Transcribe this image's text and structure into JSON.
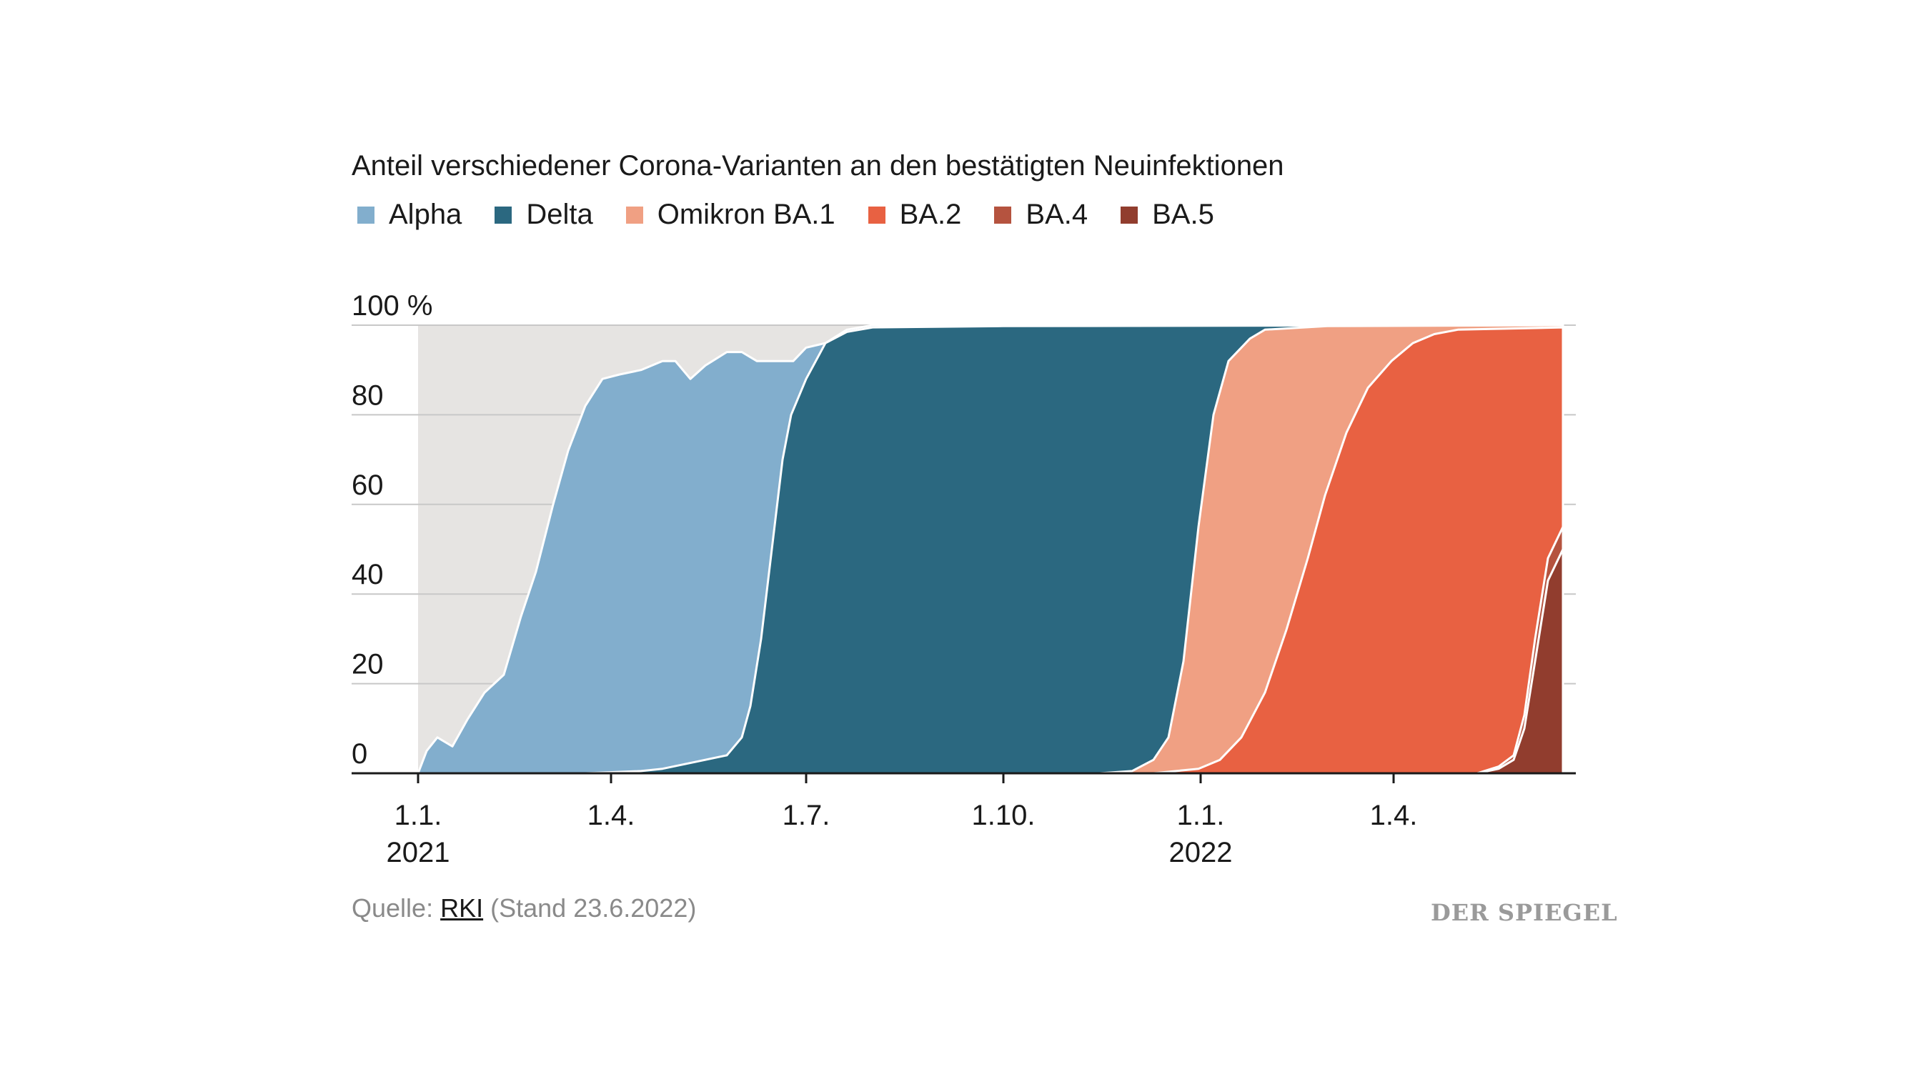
{
  "chart_data": {
    "type": "area",
    "stacked": true,
    "title": "Anteil verschiedener Corona-Varianten an den bestätigten Neuinfektionen",
    "legend": [
      {
        "name": "Alpha",
        "color": "#82aecd"
      },
      {
        "name": "Delta",
        "color": "#2b6880"
      },
      {
        "name": "Omikron BA.1",
        "color": "#f0a083"
      },
      {
        "name": "BA.2",
        "color": "#e86142"
      },
      {
        "name": "BA.4",
        "color": "#b5533f"
      },
      {
        "name": "BA.5",
        "color": "#913d2e"
      }
    ],
    "y_unit": "%",
    "ylim": [
      0,
      100
    ],
    "y_ticks": [
      "0",
      "20",
      "40",
      "60",
      "80",
      "100 %"
    ],
    "x_ticks": [
      {
        "date": "2021-01-01",
        "label": "1.1.",
        "year": "2021"
      },
      {
        "date": "2021-04-01",
        "label": "1.4.",
        "year": ""
      },
      {
        "date": "2021-07-01",
        "label": "1.7.",
        "year": ""
      },
      {
        "date": "2021-10-01",
        "label": "1.10.",
        "year": ""
      },
      {
        "date": "2022-01-01",
        "label": "1.1.",
        "year": "2022"
      },
      {
        "date": "2022-04-01",
        "label": "1.4.",
        "year": ""
      }
    ],
    "x_range": [
      "2020-12-01",
      "2022-06-25"
    ],
    "series_cumulative": [
      {
        "name": "BA.5",
        "color": "#913d2e",
        "points": [
          [
            "2022-05-10",
            0
          ],
          [
            "2022-05-20",
            1
          ],
          [
            "2022-05-27",
            3
          ],
          [
            "2022-06-01",
            10
          ],
          [
            "2022-06-06",
            25
          ],
          [
            "2022-06-12",
            43
          ],
          [
            "2022-06-19",
            50
          ]
        ]
      },
      {
        "name": "BA.4",
        "color": "#b5533f",
        "points": [
          [
            "2022-05-10",
            0
          ],
          [
            "2022-05-20",
            1.5
          ],
          [
            "2022-05-27",
            4
          ],
          [
            "2022-06-01",
            13
          ],
          [
            "2022-06-06",
            30
          ],
          [
            "2022-06-12",
            48
          ],
          [
            "2022-06-19",
            55
          ]
        ]
      },
      {
        "name": "BA.2",
        "color": "#e86142",
        "points": [
          [
            "2021-12-10",
            0
          ],
          [
            "2021-12-31",
            1
          ],
          [
            "2022-01-10",
            3
          ],
          [
            "2022-01-20",
            8
          ],
          [
            "2022-01-31",
            18
          ],
          [
            "2022-02-10",
            32
          ],
          [
            "2022-02-20",
            48
          ],
          [
            "2022-02-28",
            62
          ],
          [
            "2022-03-10",
            76
          ],
          [
            "2022-03-20",
            86
          ],
          [
            "2022-03-31",
            92
          ],
          [
            "2022-04-10",
            96
          ],
          [
            "2022-04-20",
            98
          ],
          [
            "2022-05-01",
            99
          ],
          [
            "2022-06-19",
            99.5
          ]
        ]
      },
      {
        "name": "Omikron BA.1",
        "color": "#f0a083",
        "points": [
          [
            "2021-11-15",
            0
          ],
          [
            "2021-11-30",
            0.5
          ],
          [
            "2021-12-10",
            3
          ],
          [
            "2021-12-17",
            8
          ],
          [
            "2021-12-24",
            25
          ],
          [
            "2021-12-31",
            55
          ],
          [
            "2022-01-07",
            80
          ],
          [
            "2022-01-14",
            92
          ],
          [
            "2022-01-24",
            97
          ],
          [
            "2022-01-31",
            99
          ],
          [
            "2022-03-01",
            99.8
          ],
          [
            "2022-06-19",
            100
          ]
        ]
      },
      {
        "name": "Delta",
        "color": "#2b6880",
        "points": [
          [
            "2021-03-20",
            0
          ],
          [
            "2021-04-15",
            0.5
          ],
          [
            "2021-04-25",
            1
          ],
          [
            "2021-05-10",
            2.5
          ],
          [
            "2021-05-25",
            4
          ],
          [
            "2021-06-01",
            8
          ],
          [
            "2021-06-05",
            15
          ],
          [
            "2021-06-10",
            30
          ],
          [
            "2021-06-15",
            50
          ],
          [
            "2021-06-20",
            70
          ],
          [
            "2021-06-24",
            80
          ],
          [
            "2021-07-01",
            88
          ],
          [
            "2021-07-10",
            96
          ],
          [
            "2021-07-20",
            98.5
          ],
          [
            "2021-08-01",
            99.5
          ],
          [
            "2021-10-01",
            99.8
          ],
          [
            "2022-06-19",
            100
          ]
        ]
      },
      {
        "name": "Alpha",
        "color": "#82aecd",
        "points": [
          [
            "2021-01-01",
            0
          ],
          [
            "2021-01-05",
            5
          ],
          [
            "2021-01-10",
            8
          ],
          [
            "2021-01-17",
            6
          ],
          [
            "2021-01-24",
            12
          ],
          [
            "2021-02-01",
            18
          ],
          [
            "2021-02-10",
            22
          ],
          [
            "2021-02-18",
            35
          ],
          [
            "2021-02-25",
            45
          ],
          [
            "2021-03-05",
            60
          ],
          [
            "2021-03-12",
            72
          ],
          [
            "2021-03-20",
            82
          ],
          [
            "2021-03-28",
            88
          ],
          [
            "2021-04-05",
            89
          ],
          [
            "2021-04-15",
            90
          ],
          [
            "2021-04-25",
            92
          ],
          [
            "2021-05-01",
            92
          ],
          [
            "2021-05-08",
            88
          ],
          [
            "2021-05-15",
            91
          ],
          [
            "2021-05-25",
            94
          ],
          [
            "2021-06-01",
            94
          ],
          [
            "2021-06-08",
            92
          ],
          [
            "2021-06-15",
            92
          ],
          [
            "2021-06-25",
            92
          ],
          [
            "2021-07-01",
            95
          ],
          [
            "2021-07-10",
            96
          ],
          [
            "2021-07-20",
            99
          ],
          [
            "2021-08-01",
            100
          ],
          [
            "2022-06-19",
            100
          ]
        ]
      }
    ]
  },
  "footer": {
    "source_prefix": "Quelle:",
    "source_name": "RKI",
    "source_suffix": "(Stand 23.6.2022)"
  },
  "brand": {
    "logo_text": "DER SPIEGEL"
  }
}
